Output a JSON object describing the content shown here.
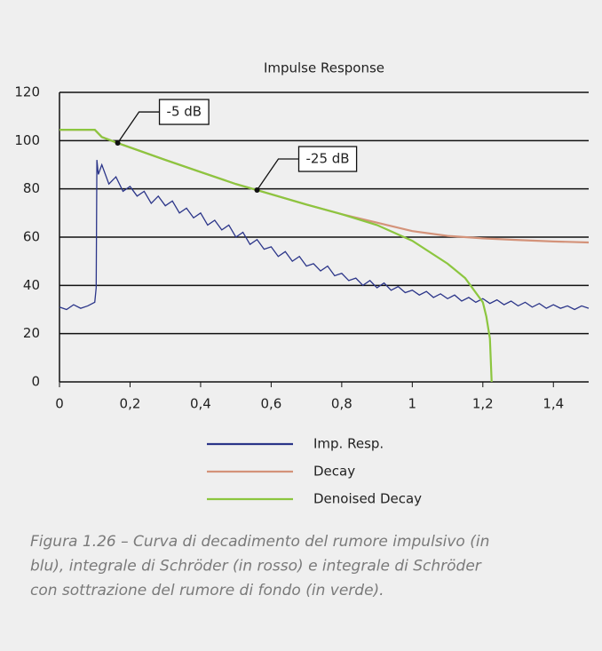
{
  "chart_data": {
    "type": "line",
    "title": "Impulse Response",
    "xlim": [
      0,
      1.5
    ],
    "ylim": [
      0,
      120
    ],
    "xticks": [
      0,
      {
        "value": 0.2,
        "label": "0,2"
      },
      {
        "value": 0.4,
        "label": "0,4"
      },
      {
        "value": 0.6,
        "label": "0,6"
      },
      {
        "value": 0.8,
        "label": "0,8"
      },
      1,
      {
        "value": 1.2,
        "label": "1,2"
      },
      {
        "value": 1.4,
        "label": "1,4"
      }
    ],
    "yticks": [
      0,
      20,
      40,
      60,
      80,
      100,
      120
    ],
    "grid": true,
    "series": [
      {
        "name": "Imp. Resp.",
        "color": "#2b3589",
        "x": [
          0,
          0.02,
          0.04,
          0.06,
          0.08,
          0.1,
          0.104,
          0.106,
          0.11,
          0.12,
          0.14,
          0.16,
          0.18,
          0.2,
          0.22,
          0.24,
          0.26,
          0.28,
          0.3,
          0.32,
          0.34,
          0.36,
          0.38,
          0.4,
          0.42,
          0.44,
          0.46,
          0.48,
          0.5,
          0.52,
          0.54,
          0.56,
          0.58,
          0.6,
          0.62,
          0.64,
          0.66,
          0.68,
          0.7,
          0.72,
          0.74,
          0.76,
          0.78,
          0.8,
          0.82,
          0.84,
          0.86,
          0.88,
          0.9,
          0.92,
          0.94,
          0.96,
          0.98,
          1.0,
          1.02,
          1.04,
          1.06,
          1.08,
          1.1,
          1.12,
          1.14,
          1.16,
          1.18,
          1.2,
          1.22,
          1.24,
          1.26,
          1.28,
          1.3,
          1.32,
          1.34,
          1.36,
          1.38,
          1.4,
          1.42,
          1.44,
          1.46,
          1.48,
          1.5
        ],
        "values": [
          31,
          30,
          32,
          30.5,
          31.5,
          33,
          39,
          92,
          86,
          90,
          82,
          85,
          79,
          81,
          77,
          79,
          74,
          77,
          73,
          75,
          70,
          72,
          68,
          70,
          65,
          67,
          63,
          65,
          60,
          62,
          57,
          59,
          55,
          56,
          52,
          54,
          50,
          52,
          48,
          49,
          46,
          48,
          44,
          45,
          42,
          43,
          40,
          42,
          39,
          41,
          38,
          39.5,
          37,
          38,
          36,
          37.5,
          35,
          36.5,
          34.5,
          36,
          33.5,
          35,
          33,
          34.5,
          32.5,
          34,
          32,
          33.5,
          31.5,
          33,
          31,
          32.5,
          30.5,
          32,
          30.5,
          31.5,
          30,
          31.5,
          30.5
        ]
      },
      {
        "name": "Decay",
        "color": "#d4937a",
        "x": [
          0,
          0.1,
          0.12,
          0.165,
          0.3,
          0.4,
          0.5,
          0.56,
          0.7,
          0.8,
          0.9,
          1.0,
          1.1,
          1.2,
          1.3,
          1.4,
          1.5
        ],
        "values": [
          104.5,
          104.5,
          101.5,
          99,
          92,
          87,
          82,
          79.5,
          73.5,
          69.5,
          66,
          62.5,
          60.5,
          59.5,
          58.8,
          58.2,
          57.8
        ]
      },
      {
        "name": "Denoised Decay",
        "color": "#8cc63f",
        "x": [
          0,
          0.1,
          0.12,
          0.165,
          0.3,
          0.4,
          0.5,
          0.56,
          0.7,
          0.8,
          0.9,
          1.0,
          1.1,
          1.15,
          1.2,
          1.21,
          1.22,
          1.225
        ],
        "values": [
          104.5,
          104.5,
          101.5,
          99,
          92,
          87,
          82,
          79.5,
          73.5,
          69.5,
          65,
          58.5,
          49,
          43,
          33,
          27,
          18,
          0
        ]
      }
    ],
    "annotations": [
      {
        "text": "-5 dB",
        "x": 0.165,
        "y": 99
      },
      {
        "text": "-25 dB",
        "x": 0.56,
        "y": 79.5
      }
    ],
    "caption": [
      "Figura 1.26 – Curva di decadimento del rumore impulsivo (in",
      "blu), integrale di Schröder (in rosso) e integrale di Schröder",
      "con sottrazione del rumore di fondo (in verde)."
    ]
  }
}
